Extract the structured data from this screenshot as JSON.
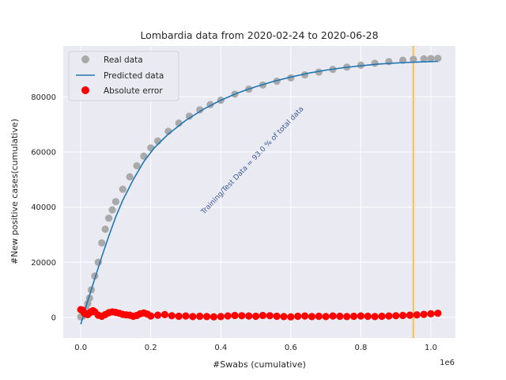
{
  "chart_data": {
    "type": "scatter",
    "title": "Lombardia data  from 2020-02-24 to 2020-06-28",
    "xlabel": "#Swabs (cumulative)",
    "ylabel": "#New positive cases(cumulative)",
    "x_offset_label": "1e6",
    "xlim": [
      -0.05,
      1.07
    ],
    "ylim": [
      -7500,
      98500
    ],
    "x_ticks": [
      0.0,
      0.2,
      0.4,
      0.6,
      0.8,
      1.0
    ],
    "x_tick_labels": [
      "0.0",
      "0.2",
      "0.4",
      "0.6",
      "0.8",
      "1.0"
    ],
    "y_ticks": [
      0,
      20000,
      40000,
      60000,
      80000
    ],
    "y_tick_labels": [
      "0",
      "20000",
      "40000",
      "60000",
      "80000"
    ],
    "grid": true,
    "legend_position": "top-left",
    "split_x": 0.95,
    "annotation": "Training/Test Data = 93.0 % of total data",
    "colors": {
      "real": "#a9a9a9",
      "predicted": "#1f77b4",
      "error": "#ff0000",
      "split_line": "#f2c66d",
      "annotation": "#3d5a99",
      "background": "#eaeaf2",
      "grid": "#ffffff"
    },
    "series": [
      {
        "name": "Real data",
        "marker": "circle",
        "x": [
          0.0,
          0.005,
          0.01,
          0.015,
          0.02,
          0.025,
          0.03,
          0.04,
          0.05,
          0.06,
          0.07,
          0.08,
          0.09,
          0.1,
          0.12,
          0.14,
          0.16,
          0.18,
          0.2,
          0.22,
          0.25,
          0.28,
          0.31,
          0.34,
          0.37,
          0.4,
          0.44,
          0.48,
          0.52,
          0.56,
          0.6,
          0.64,
          0.68,
          0.72,
          0.76,
          0.8,
          0.84,
          0.88,
          0.92,
          0.95,
          0.98,
          1.0,
          1.02
        ],
        "y": [
          200,
          400,
          1500,
          3000,
          5000,
          7000,
          10000,
          15000,
          20000,
          27000,
          32000,
          36000,
          39000,
          42000,
          46500,
          51000,
          55000,
          58500,
          61500,
          64000,
          67500,
          70500,
          73000,
          75300,
          77200,
          78800,
          81000,
          82800,
          84300,
          85700,
          86900,
          88000,
          89000,
          90000,
          90800,
          91500,
          92200,
          92800,
          93300,
          93600,
          93800,
          93900,
          94000
        ]
      },
      {
        "name": "Predicted data",
        "marker": "line",
        "x": [
          0.0,
          0.02,
          0.04,
          0.06,
          0.08,
          0.1,
          0.12,
          0.15,
          0.18,
          0.21,
          0.25,
          0.3,
          0.35,
          0.4,
          0.45,
          0.5,
          0.55,
          0.6,
          0.65,
          0.7,
          0.75,
          0.8,
          0.85,
          0.9,
          0.95,
          1.0,
          1.02
        ],
        "y": [
          -2500,
          6000,
          14000,
          22000,
          29500,
          36500,
          42500,
          50000,
          56500,
          61500,
          66500,
          71500,
          75500,
          78800,
          81500,
          83700,
          85600,
          87200,
          88600,
          89700,
          90600,
          91300,
          91900,
          92300,
          92600,
          92800,
          92900
        ]
      },
      {
        "name": "Absolute error",
        "marker": "circle",
        "x": [
          0.0,
          0.005,
          0.01,
          0.015,
          0.02,
          0.025,
          0.03,
          0.035,
          0.04,
          0.05,
          0.06,
          0.07,
          0.08,
          0.09,
          0.1,
          0.11,
          0.12,
          0.13,
          0.14,
          0.15,
          0.16,
          0.17,
          0.18,
          0.19,
          0.2,
          0.22,
          0.24,
          0.26,
          0.28,
          0.3,
          0.32,
          0.34,
          0.36,
          0.38,
          0.4,
          0.42,
          0.44,
          0.46,
          0.48,
          0.5,
          0.52,
          0.54,
          0.56,
          0.58,
          0.6,
          0.62,
          0.64,
          0.66,
          0.68,
          0.7,
          0.72,
          0.74,
          0.76,
          0.78,
          0.8,
          0.82,
          0.84,
          0.86,
          0.88,
          0.9,
          0.92,
          0.94,
          0.96,
          0.98,
          1.0,
          1.02
        ],
        "y": [
          2800,
          2600,
          1600,
          1200,
          1000,
          1600,
          2100,
          2400,
          2000,
          800,
          400,
          1000,
          1700,
          2000,
          1800,
          1500,
          1100,
          900,
          800,
          400,
          700,
          1300,
          1600,
          1200,
          500,
          800,
          1000,
          600,
          400,
          500,
          300,
          400,
          300,
          200,
          300,
          500,
          700,
          600,
          500,
          400,
          700,
          600,
          400,
          300,
          200,
          400,
          500,
          300,
          400,
          300,
          500,
          400,
          300,
          400,
          500,
          400,
          300,
          400,
          500,
          600,
          700,
          800,
          900,
          1100,
          1300,
          1500
        ]
      }
    ]
  }
}
